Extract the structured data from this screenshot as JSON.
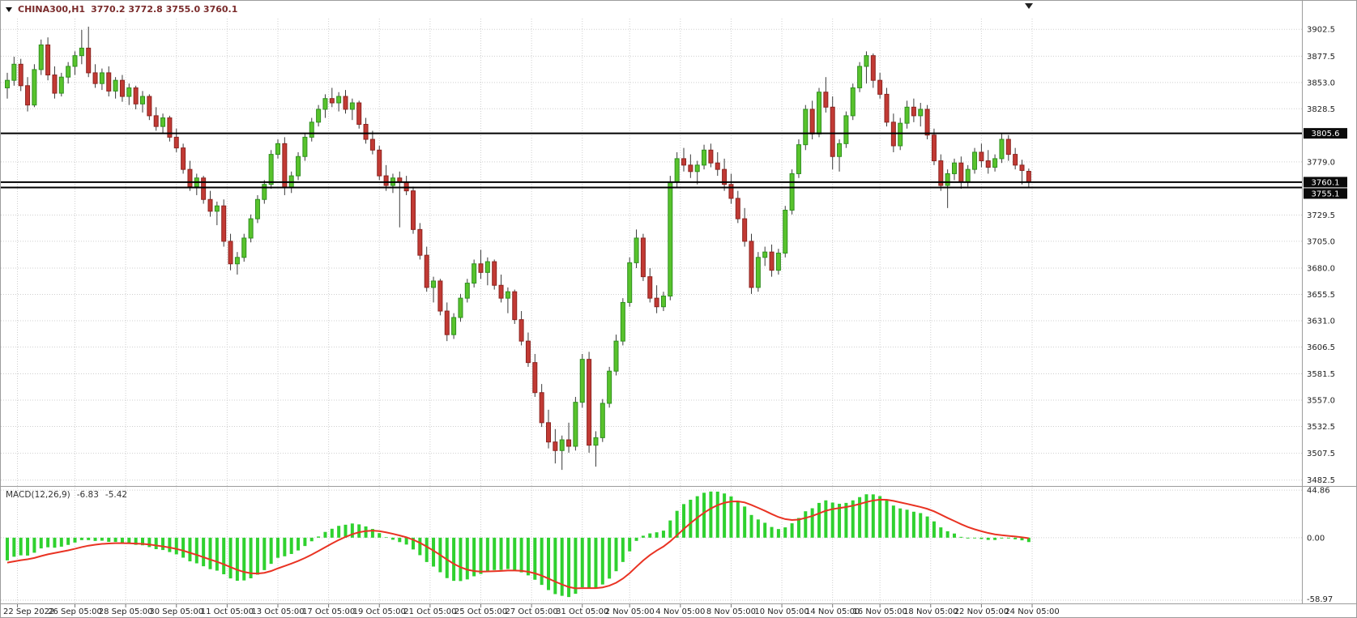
{
  "header": {
    "symbol_period": "CHINA300,H1",
    "ohlc": "3770.2 3772.8 3755.0 3760.1"
  },
  "chart_data": {
    "type": "candlestick",
    "symbol": "CHINA300",
    "timeframe": "H1",
    "title": "CHINA300,H1",
    "ohlc_display": {
      "open": 3770.2,
      "high": 3772.8,
      "low": 3755.0,
      "close": 3760.1
    },
    "ylim": [
      3477,
      3914
    ],
    "price_ticks": [
      3902.5,
      3877.5,
      3853.0,
      3828.5,
      3779.0,
      3729.5,
      3705.0,
      3680.0,
      3655.5,
      3631.0,
      3606.5,
      3581.5,
      3557.0,
      3532.5,
      3507.5,
      3482.5
    ],
    "price_badges": [
      {
        "text": "3805.6",
        "price": 3805.6
      },
      {
        "text": "3760.1",
        "price": 3760.1
      },
      {
        "text": "3755.1",
        "price": 3755.1
      }
    ],
    "hlines": [
      3805.6,
      3760.1,
      3755.1
    ],
    "time_labels": [
      {
        "text": "22 Sep 2022",
        "i": 1.5
      },
      {
        "text": "26 Sep 05:00",
        "i": 10
      },
      {
        "text": "28 Sep 05:00",
        "i": 17.5
      },
      {
        "text": "30 Sep 05:00",
        "i": 25
      },
      {
        "text": "11 Oct 05:00",
        "i": 32.5
      },
      {
        "text": "13 Oct 05:00",
        "i": 40
      },
      {
        "text": "17 Oct 05:00",
        "i": 47.5
      },
      {
        "text": "19 Oct 05:00",
        "i": 55
      },
      {
        "text": "21 Oct 05:00",
        "i": 62.5
      },
      {
        "text": "25 Oct 05:00",
        "i": 70
      },
      {
        "text": "27 Oct 05:00",
        "i": 77.5
      },
      {
        "text": "31 Oct 05:00",
        "i": 85
      },
      {
        "text": "2 Nov 05:00",
        "i": 92
      },
      {
        "text": "4 Nov 05:00",
        "i": 99.5
      },
      {
        "text": "8 Nov 05:00",
        "i": 107
      },
      {
        "text": "10 Nov 05:00",
        "i": 114.5
      },
      {
        "text": "14 Nov 05:00",
        "i": 122
      },
      {
        "text": "16 Nov 05:00",
        "i": 129
      },
      {
        "text": "18 Nov 05:00",
        "i": 136.5
      },
      {
        "text": "22 Nov 05:00",
        "i": 144
      },
      {
        "text": "24 Nov 05:00",
        "i": 151.5
      }
    ],
    "candles": [
      [
        3848,
        3862,
        3838,
        3855
      ],
      [
        3855,
        3877,
        3850,
        3870
      ],
      [
        3870,
        3875,
        3845,
        3850
      ],
      [
        3850,
        3858,
        3826,
        3832
      ],
      [
        3832,
        3870,
        3830,
        3865
      ],
      [
        3865,
        3893,
        3860,
        3888
      ],
      [
        3888,
        3895,
        3855,
        3860
      ],
      [
        3860,
        3868,
        3838,
        3843
      ],
      [
        3843,
        3862,
        3840,
        3858
      ],
      [
        3858,
        3872,
        3852,
        3868
      ],
      [
        3868,
        3882,
        3860,
        3878
      ],
      [
        3878,
        3902,
        3870,
        3885
      ],
      [
        3885,
        3905,
        3858,
        3862
      ],
      [
        3862,
        3870,
        3848,
        3852
      ],
      [
        3852,
        3866,
        3846,
        3862
      ],
      [
        3862,
        3868,
        3840,
        3845
      ],
      [
        3845,
        3858,
        3838,
        3855
      ],
      [
        3855,
        3860,
        3835,
        3840
      ],
      [
        3840,
        3852,
        3832,
        3848
      ],
      [
        3848,
        3850,
        3828,
        3833
      ],
      [
        3833,
        3845,
        3825,
        3840
      ],
      [
        3840,
        3842,
        3818,
        3822
      ],
      [
        3822,
        3830,
        3808,
        3812
      ],
      [
        3812,
        3824,
        3806,
        3820
      ],
      [
        3820,
        3822,
        3798,
        3802
      ],
      [
        3802,
        3810,
        3788,
        3792
      ],
      [
        3792,
        3796,
        3768,
        3772
      ],
      [
        3772,
        3780,
        3752,
        3756
      ],
      [
        3756,
        3768,
        3748,
        3764
      ],
      [
        3764,
        3766,
        3740,
        3744
      ],
      [
        3744,
        3752,
        3728,
        3733
      ],
      [
        3733,
        3742,
        3720,
        3738
      ],
      [
        3738,
        3744,
        3700,
        3705
      ],
      [
        3705,
        3712,
        3678,
        3684
      ],
      [
        3684,
        3695,
        3674,
        3690
      ],
      [
        3690,
        3712,
        3686,
        3708
      ],
      [
        3708,
        3730,
        3704,
        3726
      ],
      [
        3726,
        3748,
        3722,
        3744
      ],
      [
        3744,
        3762,
        3740,
        3758
      ],
      [
        3758,
        3790,
        3754,
        3786
      ],
      [
        3786,
        3800,
        3782,
        3796
      ],
      [
        3796,
        3802,
        3748,
        3755
      ],
      [
        3755,
        3770,
        3750,
        3766
      ],
      [
        3766,
        3788,
        3762,
        3784
      ],
      [
        3784,
        3806,
        3780,
        3802
      ],
      [
        3802,
        3820,
        3798,
        3816
      ],
      [
        3816,
        3832,
        3812,
        3828
      ],
      [
        3828,
        3842,
        3820,
        3838
      ],
      [
        3838,
        3848,
        3830,
        3834
      ],
      [
        3834,
        3844,
        3826,
        3840
      ],
      [
        3840,
        3846,
        3824,
        3828
      ],
      [
        3828,
        3838,
        3818,
        3834
      ],
      [
        3834,
        3836,
        3810,
        3814
      ],
      [
        3814,
        3820,
        3796,
        3800
      ],
      [
        3800,
        3808,
        3786,
        3790
      ],
      [
        3790,
        3794,
        3762,
        3766
      ],
      [
        3766,
        3776,
        3752,
        3757
      ],
      [
        3757,
        3768,
        3750,
        3764
      ],
      [
        3764,
        3770,
        3718,
        3760
      ],
      [
        3760,
        3766,
        3748,
        3752
      ],
      [
        3752,
        3756,
        3712,
        3716
      ],
      [
        3716,
        3722,
        3688,
        3692
      ],
      [
        3692,
        3700,
        3658,
        3662
      ],
      [
        3662,
        3672,
        3648,
        3668
      ],
      [
        3668,
        3670,
        3636,
        3640
      ],
      [
        3640,
        3648,
        3612,
        3618
      ],
      [
        3618,
        3638,
        3614,
        3634
      ],
      [
        3634,
        3656,
        3630,
        3652
      ],
      [
        3652,
        3670,
        3648,
        3666
      ],
      [
        3666,
        3688,
        3662,
        3684
      ],
      [
        3684,
        3697,
        3670,
        3676
      ],
      [
        3676,
        3690,
        3664,
        3686
      ],
      [
        3686,
        3688,
        3660,
        3664
      ],
      [
        3664,
        3674,
        3648,
        3652
      ],
      [
        3652,
        3662,
        3638,
        3658
      ],
      [
        3658,
        3660,
        3628,
        3632
      ],
      [
        3632,
        3640,
        3608,
        3612
      ],
      [
        3612,
        3620,
        3588,
        3592
      ],
      [
        3592,
        3600,
        3560,
        3564
      ],
      [
        3564,
        3572,
        3532,
        3536
      ],
      [
        3536,
        3548,
        3512,
        3518
      ],
      [
        3518,
        3530,
        3498,
        3510
      ],
      [
        3510,
        3524,
        3492,
        3520
      ],
      [
        3520,
        3536,
        3508,
        3514
      ],
      [
        3514,
        3560,
        3510,
        3555
      ],
      [
        3555,
        3600,
        3550,
        3595
      ],
      [
        3595,
        3602,
        3508,
        3515
      ],
      [
        3515,
        3528,
        3495,
        3522
      ],
      [
        3522,
        3558,
        3518,
        3554
      ],
      [
        3554,
        3588,
        3550,
        3584
      ],
      [
        3584,
        3618,
        3580,
        3612
      ],
      [
        3612,
        3652,
        3608,
        3648
      ],
      [
        3648,
        3690,
        3644,
        3685
      ],
      [
        3685,
        3716,
        3680,
        3708
      ],
      [
        3708,
        3712,
        3668,
        3672
      ],
      [
        3672,
        3680,
        3648,
        3652
      ],
      [
        3652,
        3664,
        3638,
        3644
      ],
      [
        3644,
        3658,
        3640,
        3654
      ],
      [
        3654,
        3766,
        3650,
        3760
      ],
      [
        3760,
        3788,
        3755,
        3782
      ],
      [
        3782,
        3792,
        3770,
        3776
      ],
      [
        3776,
        3786,
        3764,
        3770
      ],
      [
        3770,
        3780,
        3758,
        3776
      ],
      [
        3776,
        3795,
        3772,
        3790
      ],
      [
        3790,
        3796,
        3774,
        3778
      ],
      [
        3778,
        3788,
        3766,
        3772
      ],
      [
        3772,
        3782,
        3752,
        3758
      ],
      [
        3758,
        3768,
        3740,
        3745
      ],
      [
        3745,
        3752,
        3722,
        3726
      ],
      [
        3726,
        3736,
        3700,
        3705
      ],
      [
        3705,
        3712,
        3656,
        3662
      ],
      [
        3662,
        3695,
        3658,
        3690
      ],
      [
        3690,
        3700,
        3682,
        3695
      ],
      [
        3695,
        3702,
        3672,
        3678
      ],
      [
        3678,
        3698,
        3674,
        3694
      ],
      [
        3694,
        3738,
        3690,
        3734
      ],
      [
        3734,
        3772,
        3730,
        3768
      ],
      [
        3768,
        3800,
        3764,
        3795
      ],
      [
        3795,
        3832,
        3790,
        3828
      ],
      [
        3828,
        3836,
        3800,
        3805
      ],
      [
        3805,
        3848,
        3802,
        3844
      ],
      [
        3844,
        3858,
        3825,
        3830
      ],
      [
        3830,
        3840,
        3772,
        3784
      ],
      [
        3784,
        3800,
        3770,
        3796
      ],
      [
        3796,
        3826,
        3792,
        3822
      ],
      [
        3822,
        3852,
        3818,
        3848
      ],
      [
        3848,
        3872,
        3844,
        3868
      ],
      [
        3868,
        3882,
        3852,
        3878
      ],
      [
        3878,
        3880,
        3848,
        3855
      ],
      [
        3855,
        3862,
        3838,
        3842
      ],
      [
        3842,
        3848,
        3812,
        3816
      ],
      [
        3816,
        3824,
        3788,
        3794
      ],
      [
        3794,
        3820,
        3790,
        3815
      ],
      [
        3815,
        3836,
        3810,
        3830
      ],
      [
        3830,
        3838,
        3816,
        3822
      ],
      [
        3822,
        3834,
        3812,
        3828
      ],
      [
        3828,
        3832,
        3800,
        3804
      ],
      [
        3804,
        3810,
        3776,
        3780
      ],
      [
        3780,
        3786,
        3752,
        3757
      ],
      [
        3757,
        3772,
        3736,
        3768
      ],
      [
        3768,
        3782,
        3762,
        3778
      ],
      [
        3778,
        3784,
        3754,
        3760
      ],
      [
        3760,
        3776,
        3756,
        3772
      ],
      [
        3772,
        3792,
        3768,
        3788
      ],
      [
        3788,
        3796,
        3774,
        3780
      ],
      [
        3780,
        3790,
        3768,
        3774
      ],
      [
        3774,
        3786,
        3770,
        3782
      ],
      [
        3782,
        3806,
        3778,
        3800
      ],
      [
        3800,
        3804,
        3780,
        3786
      ],
      [
        3786,
        3792,
        3772,
        3776
      ],
      [
        3776,
        3781,
        3758,
        3771
      ],
      [
        3770.2,
        3772.8,
        3755.0,
        3760.1
      ]
    ],
    "macd": {
      "label": "MACD(12,26,9)",
      "value_main": "-6.83",
      "value_signal": "-5.42",
      "params": [
        12,
        26,
        9
      ],
      "ylim": [
        -62,
        48
      ],
      "axis_ticks": [
        {
          "text": "44.86",
          "value": 44.86
        },
        {
          "text": "0.00",
          "value": 0
        },
        {
          "text": "-58.97",
          "value": -58.97
        }
      ]
    }
  },
  "colors": {
    "bull_fill": "#58c32c",
    "bull_stroke": "#2f8f1f",
    "bear_fill": "#c23a34",
    "bear_stroke": "#8c2420",
    "wick": "#3a3a3a",
    "grid": "#cfcfcf",
    "axis_text": "#1f1f1f",
    "separator": "#9c9c9c",
    "hline": "#000000",
    "badge_bg": "#0a0a0a",
    "badge_text": "#ffffff",
    "macd_hist": "#2fd12f",
    "macd_signal": "#e93323",
    "header_text": "#7a2b2b",
    "macd_text": "#333333"
  }
}
